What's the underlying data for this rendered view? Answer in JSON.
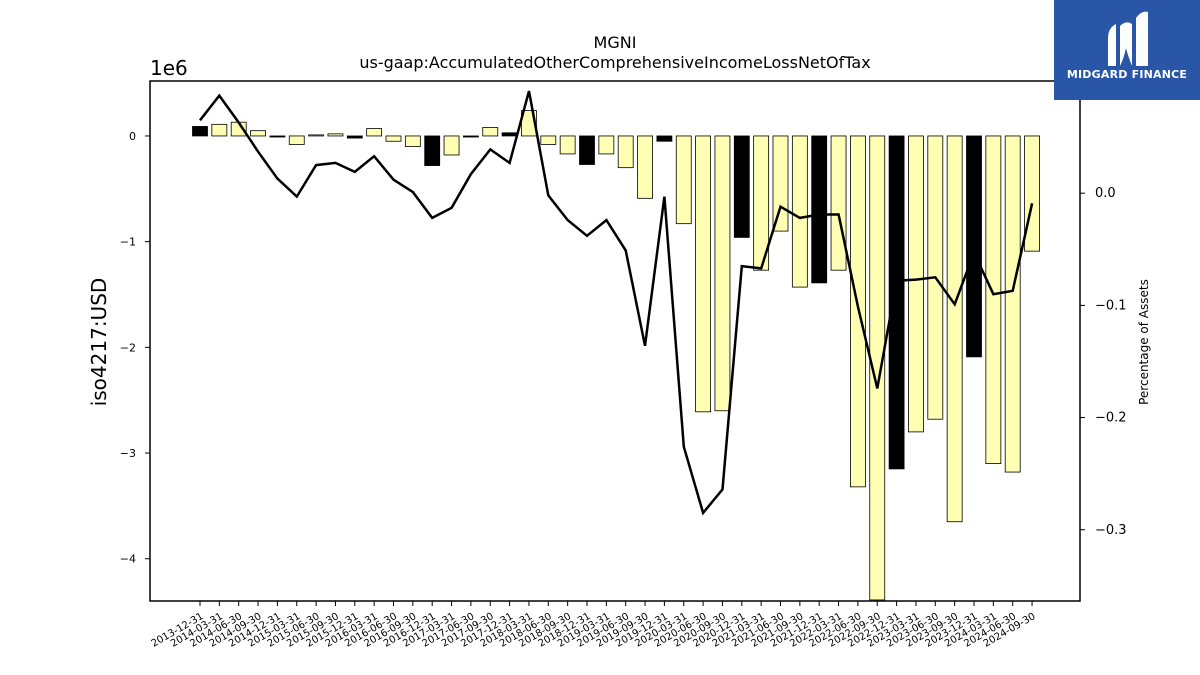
{
  "brand": {
    "name": "MIDGARD FINANCE",
    "color": "#2a56a8",
    "icon": "midgard-logo-icon"
  },
  "chart_data": {
    "type": "bar",
    "title": "MGNI",
    "subtitle": "us-gaap:AccumulatedOtherComprehensiveIncomeLossNetOfTax",
    "ylabel": "iso4217:USD",
    "y2label": "Percentage of Assets",
    "y_offset_label": "1e6",
    "y_scale_factor": 1000000,
    "ylim": [
      -4400000,
      520000
    ],
    "y2lim": [
      -0.3635,
      0.1
    ],
    "y_ticks": [
      0,
      -1,
      -2,
      -3,
      -4
    ],
    "y2_ticks": [
      "0.0",
      "−0.1",
      "−0.2",
      "−0.3"
    ],
    "y_tick_labels": [
      "0",
      "−1",
      "−2",
      "−3",
      "−4"
    ],
    "y2_tick_values": [
      0,
      -0.1,
      -0.2,
      -0.3
    ],
    "colors": {
      "positive_change": "#000000",
      "negative_change": "#ffffb3",
      "line": "#000000"
    },
    "categories": [
      "2013-12-31",
      "2014-03-31",
      "2014-06-30",
      "2014-09-30",
      "2014-12-31",
      "2015-03-31",
      "2015-06-30",
      "2015-09-30",
      "2015-12-31",
      "2016-03-31",
      "2016-06-30",
      "2016-09-30",
      "2016-12-31",
      "2017-03-31",
      "2017-06-30",
      "2017-09-30",
      "2017-12-31",
      "2018-03-31",
      "2018-06-30",
      "2018-09-30",
      "2018-12-31",
      "2019-03-31",
      "2019-06-30",
      "2019-09-30",
      "2019-12-31",
      "2020-03-31",
      "2020-06-30",
      "2020-09-30",
      "2020-12-31",
      "2021-03-31",
      "2021-06-30",
      "2021-09-30",
      "2021-12-31",
      "2022-03-31",
      "2022-06-30",
      "2022-09-30",
      "2022-12-31",
      "2023-03-31",
      "2023-06-30",
      "2023-09-30",
      "2023-12-31",
      "2024-03-31",
      "2024-06-30",
      "2024-09-30"
    ],
    "series": [
      {
        "values": [
          90000,
          110000,
          130000,
          50000,
          -10000,
          -80000,
          10000,
          20000,
          -20000,
          70000,
          -50000,
          -100000,
          -280000,
          -180000,
          -10000,
          80000,
          30000,
          240000,
          -80000,
          -170000,
          -270000,
          -170000,
          -300000,
          -590000,
          -50000,
          -830000,
          -2610000,
          -2600000,
          -960000,
          -1270000,
          -900000,
          -1430000,
          -1390000,
          -1270000,
          -3320000,
          -4390000,
          -3150000,
          -2800000,
          -2680000,
          -3650000,
          -2090000,
          -3100000,
          -3180000,
          -1090000
        ]
      },
      {
        "axis": "y2",
        "type": "line",
        "values": [
          0.065,
          0.087,
          0.063,
          0.037,
          0.013,
          -0.003,
          0.025,
          0.027,
          0.019,
          0.033,
          0.012,
          0.001,
          -0.022,
          -0.013,
          0.017,
          0.039,
          0.027,
          0.091,
          -0.002,
          -0.024,
          -0.038,
          -0.024,
          -0.051,
          -0.136,
          -0.003,
          -0.226,
          -0.285,
          -0.264,
          -0.065,
          -0.067,
          -0.012,
          -0.022,
          -0.019,
          -0.019,
          -0.101,
          -0.174,
          -0.078,
          -0.077,
          -0.075,
          -0.099,
          -0.053,
          -0.09,
          -0.087,
          -0.009
        ]
      }
    ],
    "bar_colors": [
      "#000000",
      "#ffffb3",
      "#ffffb3",
      "#ffffb3",
      "#000000",
      "#ffffb3",
      "#ffffb3",
      "#ffffb3",
      "#000000",
      "#ffffb3",
      "#ffffb3",
      "#ffffb3",
      "#000000",
      "#ffffb3",
      "#000000",
      "#ffffb3",
      "#000000",
      "#ffffb3",
      "#ffffb3",
      "#ffffb3",
      "#000000",
      "#ffffb3",
      "#ffffb3",
      "#ffffb3",
      "#000000",
      "#ffffb3",
      "#ffffb3",
      "#ffffb3",
      "#000000",
      "#ffffb3",
      "#ffffb3",
      "#ffffb3",
      "#000000",
      "#ffffb3",
      "#ffffb3",
      "#ffffb3",
      "#000000",
      "#ffffb3",
      "#ffffb3",
      "#ffffb3",
      "#000000",
      "#ffffb3",
      "#ffffb3",
      "#ffffb3"
    ]
  }
}
